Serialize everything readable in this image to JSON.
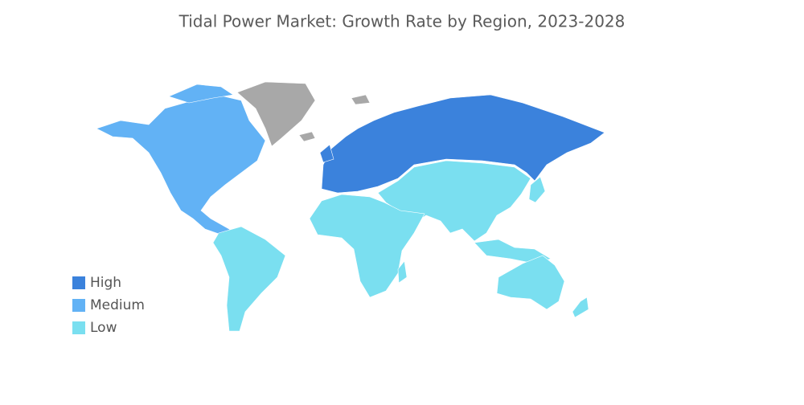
{
  "title": "Tidal Power Market: Growth Rate by Region, 2023-2028",
  "legend": [
    {
      "label": "High",
      "color": "#3b82dc"
    },
    {
      "label": "Medium",
      "color": "#62b2f5"
    },
    {
      "label": "Low",
      "color": "#7adff0"
    }
  ],
  "no_data_color": "#a8a8a8"
}
